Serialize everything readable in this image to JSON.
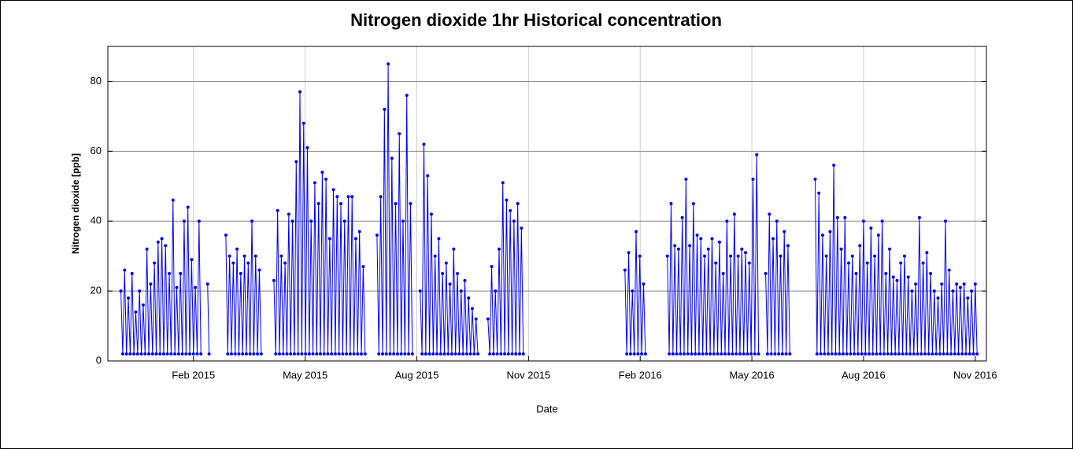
{
  "chart_data": {
    "type": "line",
    "title": "Nitrogen dioxide 1hr Historical concentration",
    "x_label": "Date",
    "y_label": "Nitrogen  dioxide  [ppb]",
    "xlim": [
      -1.3,
      22.3
    ],
    "xticks": [
      {
        "value": 1,
        "label": "Feb 2015"
      },
      {
        "value": 4,
        "label": "May 2015"
      },
      {
        "value": 7,
        "label": "Aug 2015"
      },
      {
        "value": 10,
        "label": "Nov 2015"
      },
      {
        "value": 13,
        "label": "Feb 2016"
      },
      {
        "value": 16,
        "label": "May 2016"
      },
      {
        "value": 19,
        "label": "Aug 2016"
      },
      {
        "value": 22,
        "label": "Nov 2016"
      }
    ],
    "ylim": [
      0,
      90
    ],
    "yticks": [
      0,
      20,
      40,
      60,
      80
    ],
    "grid": true,
    "x": [
      -0.95,
      -0.9,
      -0.85,
      -0.8,
      -0.75,
      -0.7,
      -0.65,
      -0.6,
      -0.55,
      -0.5,
      -0.45,
      -0.4,
      -0.35,
      -0.3,
      -0.25,
      -0.2,
      -0.15,
      -0.1,
      -0.05,
      0,
      0.05,
      0.1,
      0.15,
      0.2,
      0.25,
      0.3,
      0.35,
      0.4,
      0.45,
      0.5,
      0.55,
      0.6,
      0.65,
      0.7,
      0.75,
      0.8,
      0.85,
      0.9,
      0.95,
      1,
      1.05,
      1.1,
      1.15,
      1.2,
      1.3,
      1.38,
      1.42,
      1.6,
      1.87,
      1.92,
      1.97,
      2.02,
      2.07,
      2.12,
      2.17,
      2.22,
      2.27,
      2.32,
      2.37,
      2.42,
      2.47,
      2.52,
      2.57,
      2.62,
      2.67,
      2.72,
      2.77,
      2.82,
      3.0,
      3.16,
      3.21,
      3.26,
      3.31,
      3.36,
      3.41,
      3.46,
      3.51,
      3.56,
      3.61,
      3.66,
      3.71,
      3.76,
      3.81,
      3.86,
      3.91,
      3.96,
      4.01,
      4.06,
      4.11,
      4.16,
      4.21,
      4.26,
      4.31,
      4.36,
      4.41,
      4.46,
      4.51,
      4.56,
      4.61,
      4.66,
      4.71,
      4.76,
      4.81,
      4.86,
      4.91,
      4.96,
      5.01,
      5.06,
      5.11,
      5.16,
      5.21,
      5.26,
      5.31,
      5.36,
      5.41,
      5.46,
      5.51,
      5.56,
      5.61,
      5.75,
      5.93,
      5.98,
      6.03,
      6.08,
      6.13,
      6.18,
      6.23,
      6.28,
      6.33,
      6.38,
      6.43,
      6.48,
      6.53,
      6.58,
      6.63,
      6.68,
      6.73,
      6.78,
      6.83,
      6.88,
      6.98,
      7.09,
      7.14,
      7.19,
      7.24,
      7.29,
      7.34,
      7.39,
      7.44,
      7.49,
      7.54,
      7.59,
      7.64,
      7.69,
      7.74,
      7.79,
      7.84,
      7.89,
      7.94,
      7.99,
      8.04,
      8.09,
      8.14,
      8.19,
      8.24,
      8.29,
      8.34,
      8.39,
      8.44,
      8.49,
      8.54,
      8.59,
      8.64,
      8.78,
      8.91,
      8.96,
      9.01,
      9.06,
      9.11,
      9.16,
      9.21,
      9.26,
      9.31,
      9.36,
      9.41,
      9.46,
      9.51,
      9.56,
      9.61,
      9.66,
      9.71,
      9.76,
      9.81,
      9.86,
      11.2,
      12.59,
      12.64,
      12.69,
      12.74,
      12.79,
      12.84,
      12.89,
      12.94,
      12.99,
      13.04,
      13.09,
      13.14,
      13.4,
      13.73,
      13.78,
      13.83,
      13.88,
      13.93,
      13.98,
      14.03,
      14.08,
      14.13,
      14.18,
      14.23,
      14.28,
      14.33,
      14.38,
      14.43,
      14.48,
      14.53,
      14.58,
      14.63,
      14.68,
      14.73,
      14.78,
      14.83,
      14.88,
      14.93,
      14.98,
      15.03,
      15.08,
      15.13,
      15.18,
      15.23,
      15.28,
      15.33,
      15.38,
      15.43,
      15.48,
      15.53,
      15.58,
      15.63,
      15.68,
      15.73,
      15.78,
      15.83,
      15.88,
      15.93,
      15.98,
      16.03,
      16.08,
      16.13,
      16.18,
      16.28,
      16.37,
      16.42,
      16.47,
      16.52,
      16.57,
      16.62,
      16.67,
      16.72,
      16.77,
      16.82,
      16.87,
      16.92,
      16.97,
      17.02,
      17.4,
      17.7,
      17.75,
      17.8,
      17.85,
      17.9,
      17.95,
      18,
      18.05,
      18.1,
      18.15,
      18.2,
      18.25,
      18.3,
      18.35,
      18.4,
      18.45,
      18.5,
      18.55,
      18.6,
      18.65,
      18.7,
      18.75,
      18.8,
      18.85,
      18.9,
      18.95,
      19,
      19.05,
      19.1,
      19.15,
      19.2,
      19.25,
      19.3,
      19.35,
      19.4,
      19.45,
      19.5,
      19.55,
      19.6,
      19.65,
      19.7,
      19.75,
      19.8,
      19.85,
      19.9,
      19.95,
      20,
      20.05,
      20.1,
      20.15,
      20.2,
      20.25,
      20.3,
      20.35,
      20.4,
      20.45,
      20.5,
      20.55,
      20.6,
      20.65,
      20.7,
      20.75,
      20.8,
      20.85,
      20.9,
      20.95,
      21,
      21.05,
      21.1,
      21.15,
      21.2,
      21.25,
      21.3,
      21.35,
      21.4,
      21.45,
      21.5,
      21.55,
      21.6,
      21.65,
      21.7,
      21.75,
      21.8,
      21.85,
      21.9,
      21.95,
      22,
      22.05
    ],
    "series": [
      {
        "color": "#0000ff",
        "values": [
          20,
          2,
          26,
          2,
          18,
          2,
          25,
          2,
          14,
          2,
          20,
          2,
          16,
          2,
          32,
          2,
          22,
          2,
          28,
          2,
          34,
          2,
          35,
          2,
          33,
          2,
          25,
          2,
          46,
          2,
          21,
          2,
          25,
          2,
          40,
          2,
          44,
          2,
          29,
          2,
          21,
          2,
          40,
          2,
          null,
          22,
          2,
          null,
          36,
          2,
          30,
          2,
          28,
          2,
          32,
          2,
          25,
          2,
          30,
          2,
          28,
          2,
          40,
          2,
          30,
          2,
          26,
          2,
          null,
          23,
          2,
          43,
          2,
          30,
          2,
          28,
          2,
          42,
          2,
          40,
          2,
          57,
          2,
          77,
          2,
          68,
          2,
          61,
          2,
          40,
          2,
          51,
          2,
          45,
          2,
          54,
          2,
          52,
          2,
          35,
          2,
          49,
          2,
          47,
          2,
          45,
          2,
          40,
          2,
          47,
          2,
          47,
          2,
          35,
          2,
          37,
          2,
          27,
          2,
          null,
          36,
          2,
          47,
          2,
          72,
          2,
          85,
          2,
          58,
          2,
          45,
          2,
          65,
          2,
          40,
          2,
          76,
          2,
          45,
          2,
          null,
          20,
          2,
          62,
          2,
          53,
          2,
          42,
          2,
          30,
          2,
          35,
          2,
          25,
          2,
          28,
          2,
          22,
          2,
          32,
          2,
          25,
          2,
          20,
          2,
          23,
          2,
          18,
          2,
          15,
          2,
          12,
          2,
          null,
          12,
          2,
          27,
          2,
          20,
          2,
          32,
          2,
          51,
          2,
          46,
          2,
          43,
          2,
          40,
          2,
          45,
          2,
          38,
          2,
          null,
          26,
          2,
          31,
          2,
          20,
          2,
          37,
          2,
          30,
          2,
          22,
          2,
          null,
          30,
          2,
          45,
          2,
          33,
          2,
          32,
          2,
          41,
          2,
          52,
          2,
          33,
          2,
          45,
          2,
          36,
          2,
          35,
          2,
          30,
          2,
          32,
          2,
          35,
          2,
          28,
          2,
          34,
          2,
          25,
          2,
          40,
          2,
          30,
          2,
          42,
          2,
          30,
          2,
          32,
          2,
          31,
          2,
          28,
          2,
          52,
          2,
          59,
          2,
          null,
          25,
          2,
          42,
          2,
          35,
          2,
          40,
          2,
          30,
          2,
          37,
          2,
          33,
          2,
          null,
          52,
          2,
          48,
          2,
          36,
          2,
          30,
          2,
          37,
          2,
          56,
          2,
          41,
          2,
          32,
          2,
          41,
          2,
          28,
          2,
          30,
          2,
          25,
          2,
          33,
          2,
          40,
          2,
          28,
          2,
          38,
          2,
          30,
          2,
          36,
          2,
          40,
          2,
          25,
          2,
          32,
          2,
          24,
          2,
          23,
          2,
          28,
          2,
          30,
          2,
          24,
          2,
          20,
          2,
          22,
          2,
          41,
          2,
          28,
          2,
          31,
          2,
          25,
          2,
          20,
          2,
          18,
          2,
          22,
          2,
          40,
          2,
          26,
          2,
          20,
          2,
          22,
          2,
          21,
          2,
          22,
          2,
          18,
          2,
          20,
          2,
          22,
          2
        ]
      }
    ]
  }
}
